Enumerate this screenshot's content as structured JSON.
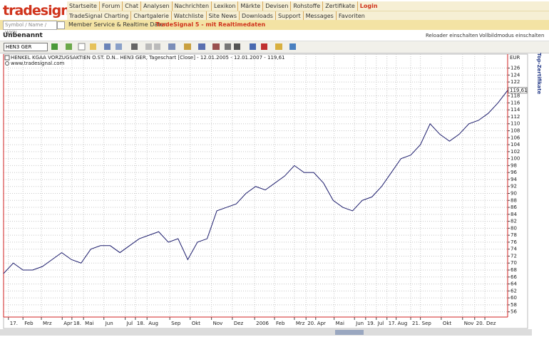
{
  "header": {
    "logo": "tradesignal",
    "nav1": [
      "Startseite",
      "Forum",
      "Chat",
      "Analysen",
      "Nachrichten",
      "Lexikon",
      "Märkte",
      "Devisen",
      "Rohstoffe",
      "Zertifikate",
      "Login"
    ],
    "nav2": [
      "TradeSignal Charting",
      "Chartgalerie",
      "Watchliste",
      "Site News",
      "Downloads",
      "Support",
      "Messages",
      "Favoriten"
    ],
    "search_placeholder": "Symbol / Name / WKN",
    "member": "Member Service & Realtime Daten",
    "promo": "TradeSignal 5 - mit Realtimedaten"
  },
  "workspace": {
    "title": "Unbenannt",
    "reloader": "Reloader einschalten",
    "fullscreen": "Vollbildmodus einschalten",
    "symbol": "HEN3 GER",
    "side_tab": "Top-Zertifikate"
  },
  "chart_data": {
    "type": "line",
    "title": "HENKEL KGAA VORZUGSAKTIEN O.ST. D.N.. HEN3 GER, Tageschart [Close] - 12.01.2005 - 12.01.2007 - 119,61",
    "subtitle": "www.tradesignal.com",
    "y_label": "EUR",
    "color": "#1c1c6c",
    "x": [
      0,
      2,
      4,
      6,
      8,
      10,
      12,
      14,
      16,
      18,
      20,
      22,
      24,
      26,
      28,
      30,
      32,
      34,
      36,
      38,
      40,
      42,
      44,
      46,
      48,
      50,
      52,
      54,
      56,
      58,
      60,
      62,
      64,
      66,
      68,
      70,
      72,
      74,
      76,
      78,
      80,
      82,
      84,
      86,
      88,
      90,
      92,
      94,
      96,
      98,
      100,
      102,
      104
    ],
    "values": [
      67,
      70,
      68,
      68,
      69,
      71,
      73,
      71,
      70,
      74,
      75,
      75,
      73,
      75,
      77,
      78,
      79,
      76,
      77,
      71,
      76,
      77,
      85,
      86,
      87,
      90,
      92,
      91,
      93,
      95,
      98,
      96,
      96,
      93,
      88,
      86,
      85,
      88,
      89,
      92,
      96,
      100,
      101,
      104,
      110,
      107,
      105,
      107,
      110,
      111,
      113,
      116,
      119.61
    ],
    "last_label": "119,61",
    "xlim": [
      0,
      104
    ],
    "xticks": [
      {
        "value": 1.0,
        "label": "17."
      },
      {
        "value": 4.0,
        "label": "Feb"
      },
      {
        "value": 7.8,
        "label": "Mrz"
      },
      {
        "value": 12.1,
        "label": "Apr"
      },
      {
        "value": 14.1,
        "label": "18."
      },
      {
        "value": 16.5,
        "label": "Mai"
      },
      {
        "value": 20.7,
        "label": "Jun"
      },
      {
        "value": 25.1,
        "label": "Jul"
      },
      {
        "value": 27.2,
        "label": "18."
      },
      {
        "value": 29.6,
        "label": "Aug"
      },
      {
        "value": 34.3,
        "label": "Sep"
      },
      {
        "value": 38.5,
        "label": "Okt"
      },
      {
        "value": 42.9,
        "label": "Nov"
      },
      {
        "value": 47.2,
        "label": "Dez"
      },
      {
        "value": 51.8,
        "label": "2006"
      },
      {
        "value": 55.9,
        "label": "Feb"
      },
      {
        "value": 60.0,
        "label": "Mrz"
      },
      {
        "value": 62.4,
        "label": "20."
      },
      {
        "value": 64.4,
        "label": "Apr"
      },
      {
        "value": 68.2,
        "label": "Mai"
      },
      {
        "value": 72.4,
        "label": "Jun"
      },
      {
        "value": 74.7,
        "label": "19."
      },
      {
        "value": 76.9,
        "label": "Jul"
      },
      {
        "value": 79.1,
        "label": "17."
      },
      {
        "value": 81.0,
        "label": "Aug"
      },
      {
        "value": 84.0,
        "label": "21."
      },
      {
        "value": 86.0,
        "label": "Sep"
      },
      {
        "value": 90.3,
        "label": "Okt"
      },
      {
        "value": 94.7,
        "label": "Nov"
      },
      {
        "value": 97.2,
        "label": "20."
      },
      {
        "value": 99.3,
        "label": "Dez"
      }
    ],
    "ylim": [
      54.5,
      130
    ],
    "yticks": [
      56,
      58,
      60,
      62,
      64,
      66,
      68,
      70,
      72,
      74,
      76,
      78,
      80,
      82,
      84,
      86,
      88,
      90,
      92,
      94,
      96,
      98,
      100,
      102,
      104,
      106,
      108,
      110,
      112,
      114,
      116,
      118,
      120,
      122,
      124,
      126
    ],
    "grid": true
  }
}
